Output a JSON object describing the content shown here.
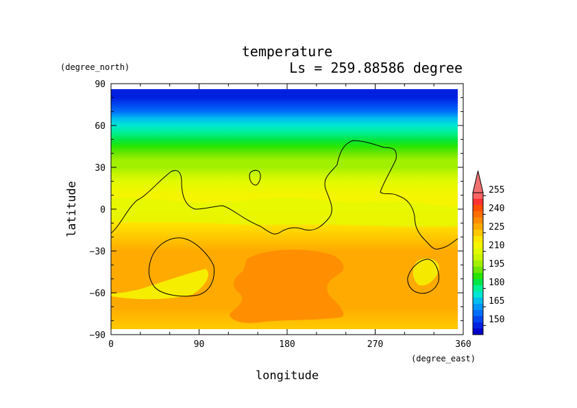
{
  "chart_data": {
    "type": "heatmap",
    "title": "temperature",
    "subtitle": "Ls = 259.88586 degree",
    "xlabel": "longitude",
    "ylabel": "latitude",
    "x_units": "(degree_east)",
    "y_units": "(degree_north)",
    "xlim": [
      0,
      360
    ],
    "ylim": [
      -90,
      90
    ],
    "x_ticks": [
      "0",
      "90",
      "180",
      "270",
      "360"
    ],
    "y_ticks": [
      "90",
      "60",
      "30",
      "0",
      "−30",
      "−60",
      "−90"
    ],
    "colorbar": {
      "levels": [
        145,
        150,
        155,
        160,
        165,
        170,
        175,
        180,
        185,
        190,
        195,
        200,
        205,
        210,
        215,
        220,
        225,
        230,
        235,
        240,
        245,
        250,
        255,
        260
      ],
      "tick_labels": [
        "150",
        "165",
        "180",
        "195",
        "210",
        "225",
        "240",
        "255"
      ],
      "colors": [
        "#0000c8",
        "#0020e0",
        "#0046f0",
        "#006efa",
        "#0096fa",
        "#00bef0",
        "#00e6d2",
        "#00f096",
        "#00e646",
        "#28e600",
        "#6ee600",
        "#a0f000",
        "#c8f500",
        "#e1fa00",
        "#f5f500",
        "#ffe600",
        "#ffc800",
        "#ffaa00",
        "#ff8c00",
        "#ff6e00",
        "#ff5000",
        "#ff3232",
        "#ff6464"
      ],
      "extend": "max"
    },
    "field_profile": {
      "lat": [
        85,
        80,
        75,
        70,
        65,
        60,
        55,
        50,
        45,
        40,
        35,
        30,
        25,
        20,
        10,
        0,
        -10,
        -20,
        -30,
        -40,
        -50,
        -60,
        -70,
        -85
      ],
      "temperature": [
        150,
        152,
        157,
        163,
        170,
        176,
        181,
        186,
        191,
        196,
        200,
        204,
        208,
        213,
        217,
        217,
        222,
        228,
        231,
        233,
        233,
        232,
        230,
        229
      ]
    },
    "land_contour": "black line (topography / coastline)"
  }
}
